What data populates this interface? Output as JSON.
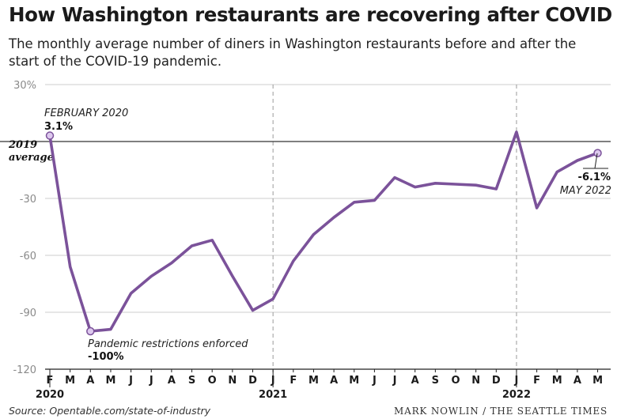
{
  "title": "How Washington restaurants are recovering after COVID",
  "subtitle": "The monthly average number of diners in Washington restaurants before and after the start of the COVID-19 pandemic.",
  "footer": {
    "source": "Source: Opentable.com/state-of-industry",
    "credit": "MARK NOWLIN / THE SEATTLE TIMES"
  },
  "colors": {
    "line": "#7b529a",
    "marker_fill": "#ddc8ee",
    "grid": "#cccccc",
    "axis": "#222222"
  },
  "chart_data": {
    "type": "line",
    "title": "How Washington restaurants are recovering after COVID",
    "ylim": [
      -120,
      30
    ],
    "yticks": [
      30,
      0,
      -30,
      -60,
      -90,
      -120
    ],
    "ytick_labels": [
      "30%",
      "",
      "-30",
      "-60",
      "-90",
      "-120"
    ],
    "grid": true,
    "reference_line": {
      "value": 0,
      "label_line1": "2019",
      "label_line2": "average"
    },
    "month_labels": [
      "F",
      "M",
      "A",
      "M",
      "J",
      "J",
      "A",
      "S",
      "O",
      "N",
      "D",
      "J",
      "F",
      "M",
      "A",
      "M",
      "J",
      "J",
      "A",
      "S",
      "O",
      "N",
      "D",
      "J",
      "F",
      "M",
      "A",
      "M"
    ],
    "year_labels": [
      {
        "label": "2020",
        "month_index": 0
      },
      {
        "label": "2021",
        "month_index": 11
      },
      {
        "label": "2022",
        "month_index": 23
      }
    ],
    "year_dividers": [
      11,
      23
    ],
    "series": [
      {
        "x": [
          "2020-02",
          "2020-03",
          "2020-04",
          "2020-05",
          "2020-06",
          "2020-07",
          "2020-08",
          "2020-09",
          "2020-10",
          "2020-11",
          "2020-12",
          "2021-01",
          "2021-02",
          "2021-03",
          "2021-04",
          "2021-05",
          "2021-06",
          "2021-07",
          "2021-08",
          "2021-09",
          "2021-10",
          "2021-11",
          "2021-12",
          "2022-01",
          "2022-02",
          "2022-03",
          "2022-04",
          "2022-05"
        ],
        "values": [
          3.1,
          -66,
          -100,
          -99,
          -80,
          -71,
          -64,
          -55,
          -52,
          -71,
          -89,
          -83,
          -63,
          -49,
          -40,
          -32,
          -31,
          -19,
          -24,
          -22,
          -22.5,
          -23,
          -25,
          5,
          -35,
          -16,
          -10,
          -6.1
        ]
      }
    ],
    "annotations": [
      {
        "index": 0,
        "label": "FEBRUARY 2020",
        "value_label": "3.1%"
      },
      {
        "index": 2,
        "label": "Pandemic restrictions enforced",
        "value_label": "-100%"
      },
      {
        "index": 27,
        "label": "MAY 2022",
        "value_label": "-6.1%"
      }
    ]
  }
}
